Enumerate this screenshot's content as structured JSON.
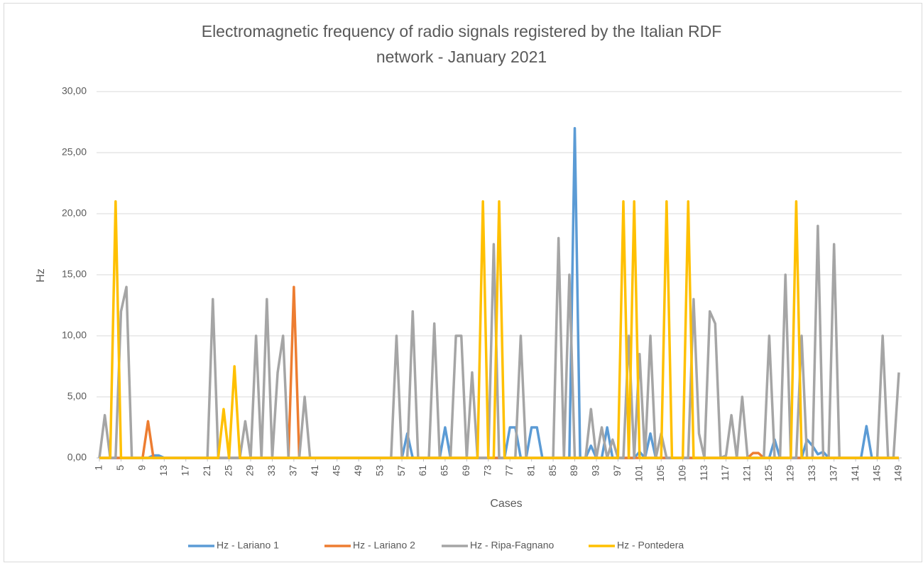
{
  "chart_data": {
    "type": "line",
    "title": "Electromagnetic frequency of radio signals registered by the Italian RDF network - January 2021",
    "xlabel": "Cases",
    "ylabel": "Hz",
    "x": [
      1,
      2,
      3,
      4,
      5,
      6,
      7,
      8,
      9,
      10,
      11,
      12,
      13,
      14,
      15,
      16,
      17,
      18,
      19,
      20,
      21,
      22,
      23,
      24,
      25,
      26,
      27,
      28,
      29,
      30,
      31,
      32,
      33,
      34,
      35,
      36,
      37,
      38,
      39,
      40,
      41,
      42,
      43,
      44,
      45,
      46,
      47,
      48,
      49,
      50,
      51,
      52,
      53,
      54,
      55,
      56,
      57,
      58,
      59,
      60,
      61,
      62,
      63,
      64,
      65,
      66,
      67,
      68,
      69,
      70,
      71,
      72,
      73,
      74,
      75,
      76,
      77,
      78,
      79,
      80,
      81,
      82,
      83,
      84,
      85,
      86,
      87,
      88,
      89,
      90,
      91,
      92,
      93,
      94,
      95,
      96,
      97,
      98,
      99,
      100,
      101,
      102,
      103,
      104,
      105,
      106,
      107,
      108,
      109,
      110,
      111,
      112,
      113,
      114,
      115,
      116,
      117,
      118,
      119,
      120,
      121,
      122,
      123,
      124,
      125,
      126,
      127,
      128,
      129,
      130,
      131,
      132,
      133,
      134,
      135,
      136,
      137,
      138,
      139,
      140,
      141,
      142,
      143,
      144,
      145,
      146,
      147,
      148,
      149
    ],
    "xlim": [
      1,
      149
    ],
    "xticks": [
      1,
      5,
      9,
      13,
      17,
      21,
      25,
      29,
      33,
      37,
      41,
      45,
      49,
      53,
      57,
      61,
      65,
      69,
      73,
      77,
      81,
      85,
      89,
      93,
      97,
      101,
      105,
      109,
      113,
      117,
      121,
      125,
      129,
      133,
      137,
      141,
      145,
      149
    ],
    "ylim": [
      0,
      30
    ],
    "yticks": [
      {
        "value": 0,
        "label": "0,00"
      },
      {
        "value": 5,
        "label": "5,00"
      },
      {
        "value": 10,
        "label": "10,00"
      },
      {
        "value": 15,
        "label": "15,00"
      },
      {
        "value": 20,
        "label": "20,00"
      },
      {
        "value": 25,
        "label": "25,00"
      },
      {
        "value": 30,
        "label": "30,00"
      }
    ],
    "grid": true,
    "legend": "bottom",
    "series": [
      {
        "name": "Hz - Lariano 1",
        "color": "#5b9bd5",
        "values": [
          0,
          0,
          0,
          0,
          0,
          0,
          0,
          0,
          0,
          0,
          0.2,
          0.2,
          0,
          0,
          0,
          0,
          0,
          0,
          0,
          0,
          0,
          0,
          0,
          0,
          0,
          0,
          0,
          0,
          0,
          0,
          0,
          0,
          0,
          0,
          0,
          0,
          0,
          0,
          0,
          0,
          0,
          0,
          0,
          0,
          0,
          0,
          0,
          0,
          0,
          0,
          0,
          0,
          0,
          0,
          0,
          0,
          0,
          2,
          0,
          0,
          0,
          0,
          0,
          0,
          2.5,
          0,
          0,
          0,
          0,
          0,
          0,
          0,
          0,
          0,
          0,
          0,
          2.5,
          2.5,
          0,
          0,
          2.5,
          2.5,
          0,
          0,
          0,
          0,
          0,
          0,
          27,
          0,
          0,
          1,
          0,
          0,
          2.5,
          0,
          0,
          0,
          0,
          0,
          0.5,
          0,
          2,
          0,
          0,
          0,
          0,
          0,
          0,
          0,
          0,
          0,
          0,
          0,
          0,
          0,
          0,
          0,
          0,
          0,
          0,
          0,
          0,
          0,
          0,
          1.5,
          0,
          0,
          0,
          0,
          0,
          1.5,
          1,
          0.3,
          0.5,
          0,
          0,
          0,
          0,
          0,
          0,
          0,
          2.6,
          0,
          0,
          0,
          0,
          0,
          0
        ]
      },
      {
        "name": "Hz - Lariano 2",
        "color": "#ed7d31",
        "values": [
          0,
          0,
          0,
          0,
          0,
          0,
          0,
          0,
          0,
          3,
          0,
          0,
          0,
          0,
          0,
          0,
          0,
          0,
          0,
          0,
          0,
          0,
          0,
          0,
          0,
          0,
          0,
          0,
          0,
          0,
          0,
          0,
          0,
          0,
          0,
          0,
          14,
          0,
          0,
          0,
          0,
          0,
          0,
          0,
          0,
          0,
          0,
          0,
          0,
          0,
          0,
          0,
          0,
          0,
          0,
          0,
          0,
          0,
          0,
          0,
          0,
          0,
          0,
          0,
          0,
          0,
          0,
          0,
          0,
          0,
          0,
          0,
          0,
          0,
          0,
          0,
          0,
          0,
          0,
          0,
          0,
          0,
          0,
          0,
          0,
          0,
          0,
          0,
          0,
          0,
          0,
          0,
          0,
          0,
          0,
          0,
          0,
          0,
          0,
          0,
          0,
          0,
          0,
          0,
          0,
          0,
          0,
          0,
          0,
          0,
          0,
          0,
          0,
          0,
          0,
          0,
          0,
          0,
          0,
          0,
          0,
          0.4,
          0.4,
          0,
          0,
          0,
          0,
          0,
          0,
          0,
          0,
          0,
          0,
          0,
          0,
          0,
          0,
          0,
          0,
          0,
          0,
          0,
          0,
          0,
          0,
          0,
          0,
          0,
          0
        ]
      },
      {
        "name": "Hz - Ripa-Fagnano",
        "color": "#a5a5a5",
        "values": [
          0,
          3.5,
          0,
          0,
          12,
          14,
          0,
          0,
          0,
          0,
          0,
          0,
          0,
          0,
          0,
          0,
          0,
          0,
          0,
          0,
          0,
          13,
          0,
          0,
          0,
          0,
          0,
          3,
          0,
          10,
          0,
          13,
          0,
          7,
          10,
          0,
          0,
          0,
          5,
          0,
          0,
          0,
          0,
          0,
          0,
          0,
          0,
          0,
          0,
          0,
          0,
          0,
          0,
          0,
          0,
          10,
          0,
          0,
          12,
          0,
          0,
          0,
          11,
          0,
          0,
          0,
          10,
          10,
          0,
          7,
          0,
          0,
          0,
          17.5,
          0,
          0,
          0,
          0,
          10,
          0,
          0,
          0,
          0,
          0,
          0,
          18,
          0,
          15,
          0,
          0,
          0,
          4,
          0,
          2.5,
          0,
          1.5,
          0,
          0,
          10,
          0,
          8.5,
          0,
          10,
          0,
          2,
          0,
          0,
          0,
          0,
          0,
          13,
          2,
          0,
          12,
          11,
          0,
          0.2,
          3.5,
          0,
          5,
          0,
          0,
          0,
          0,
          10,
          0,
          0,
          15,
          0,
          0,
          10,
          0,
          0,
          19,
          0,
          0,
          17.5,
          0,
          0,
          0,
          0,
          0,
          0,
          0,
          0,
          10,
          0,
          0,
          7
        ]
      },
      {
        "name": "Hz - Pontedera",
        "color": "#ffc000",
        "values": [
          0,
          0,
          0,
          21,
          0,
          0,
          0,
          0,
          0,
          0,
          0,
          0,
          0,
          0,
          0,
          0,
          0,
          0,
          0,
          0,
          0,
          0,
          0,
          4,
          0,
          7.5,
          0,
          0,
          0,
          0,
          0,
          0,
          0,
          0,
          0,
          0,
          0,
          0,
          0,
          0,
          0,
          0,
          0,
          0,
          0,
          0,
          0,
          0,
          0,
          0,
          0,
          0,
          0,
          0,
          0,
          0,
          0,
          0,
          0,
          0,
          0,
          0,
          0,
          0,
          0,
          0,
          0,
          0,
          0,
          0,
          0,
          21,
          0,
          0,
          21,
          0,
          0,
          0,
          0,
          0,
          0,
          0,
          0,
          0,
          0,
          0,
          0,
          0,
          0,
          0,
          0,
          0,
          0,
          0,
          0,
          0,
          0,
          21,
          0,
          21,
          0,
          0,
          0,
          0,
          0,
          21,
          0,
          0,
          0,
          21,
          0,
          0,
          0,
          0,
          0,
          0,
          0,
          0,
          0,
          0,
          0,
          0,
          0,
          0,
          0,
          0,
          0,
          0,
          0,
          21,
          0,
          0,
          0,
          0,
          0,
          0,
          0,
          0,
          0,
          0,
          0,
          0,
          0,
          0,
          0,
          0,
          0,
          0,
          0
        ]
      }
    ]
  }
}
